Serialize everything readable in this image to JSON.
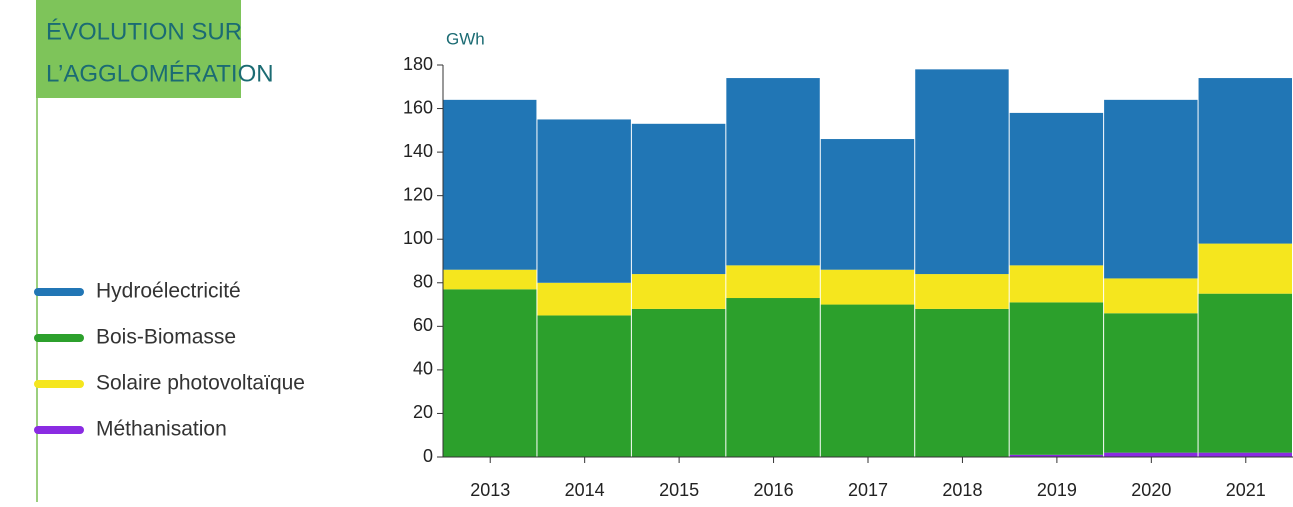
{
  "chart_data": {
    "type": "stacked_bar",
    "title": "ÉVOLUTION SUR L’AGGLOMÉRATION",
    "y_label": "GWh",
    "categories": [
      "2013",
      "2014",
      "2015",
      "2016",
      "2017",
      "2018",
      "2019",
      "2020",
      "2021"
    ],
    "series": [
      {
        "name": "Méthanisation",
        "color": "#8a2be2",
        "values": [
          0,
          0,
          0,
          0,
          0,
          0,
          1,
          2,
          2
        ]
      },
      {
        "name": "Bois-Biomasse",
        "color": "#2ca02c",
        "values": [
          77,
          65,
          68,
          73,
          70,
          68,
          70,
          64,
          73
        ]
      },
      {
        "name": "Solaire photovoltaïque",
        "color": "#f5e61e",
        "values": [
          9,
          15,
          16,
          15,
          16,
          16,
          17,
          16,
          23
        ]
      },
      {
        "name": "Hydroélectricité",
        "color": "#2176b5",
        "values": [
          78,
          75,
          69,
          86,
          60,
          94,
          70,
          82,
          76
        ]
      }
    ],
    "legend_order": [
      3,
      1,
      2,
      0
    ],
    "ylim": [
      0,
      180
    ],
    "yticks": [
      0,
      20,
      40,
      60,
      80,
      100,
      120,
      140,
      160,
      180
    ]
  }
}
